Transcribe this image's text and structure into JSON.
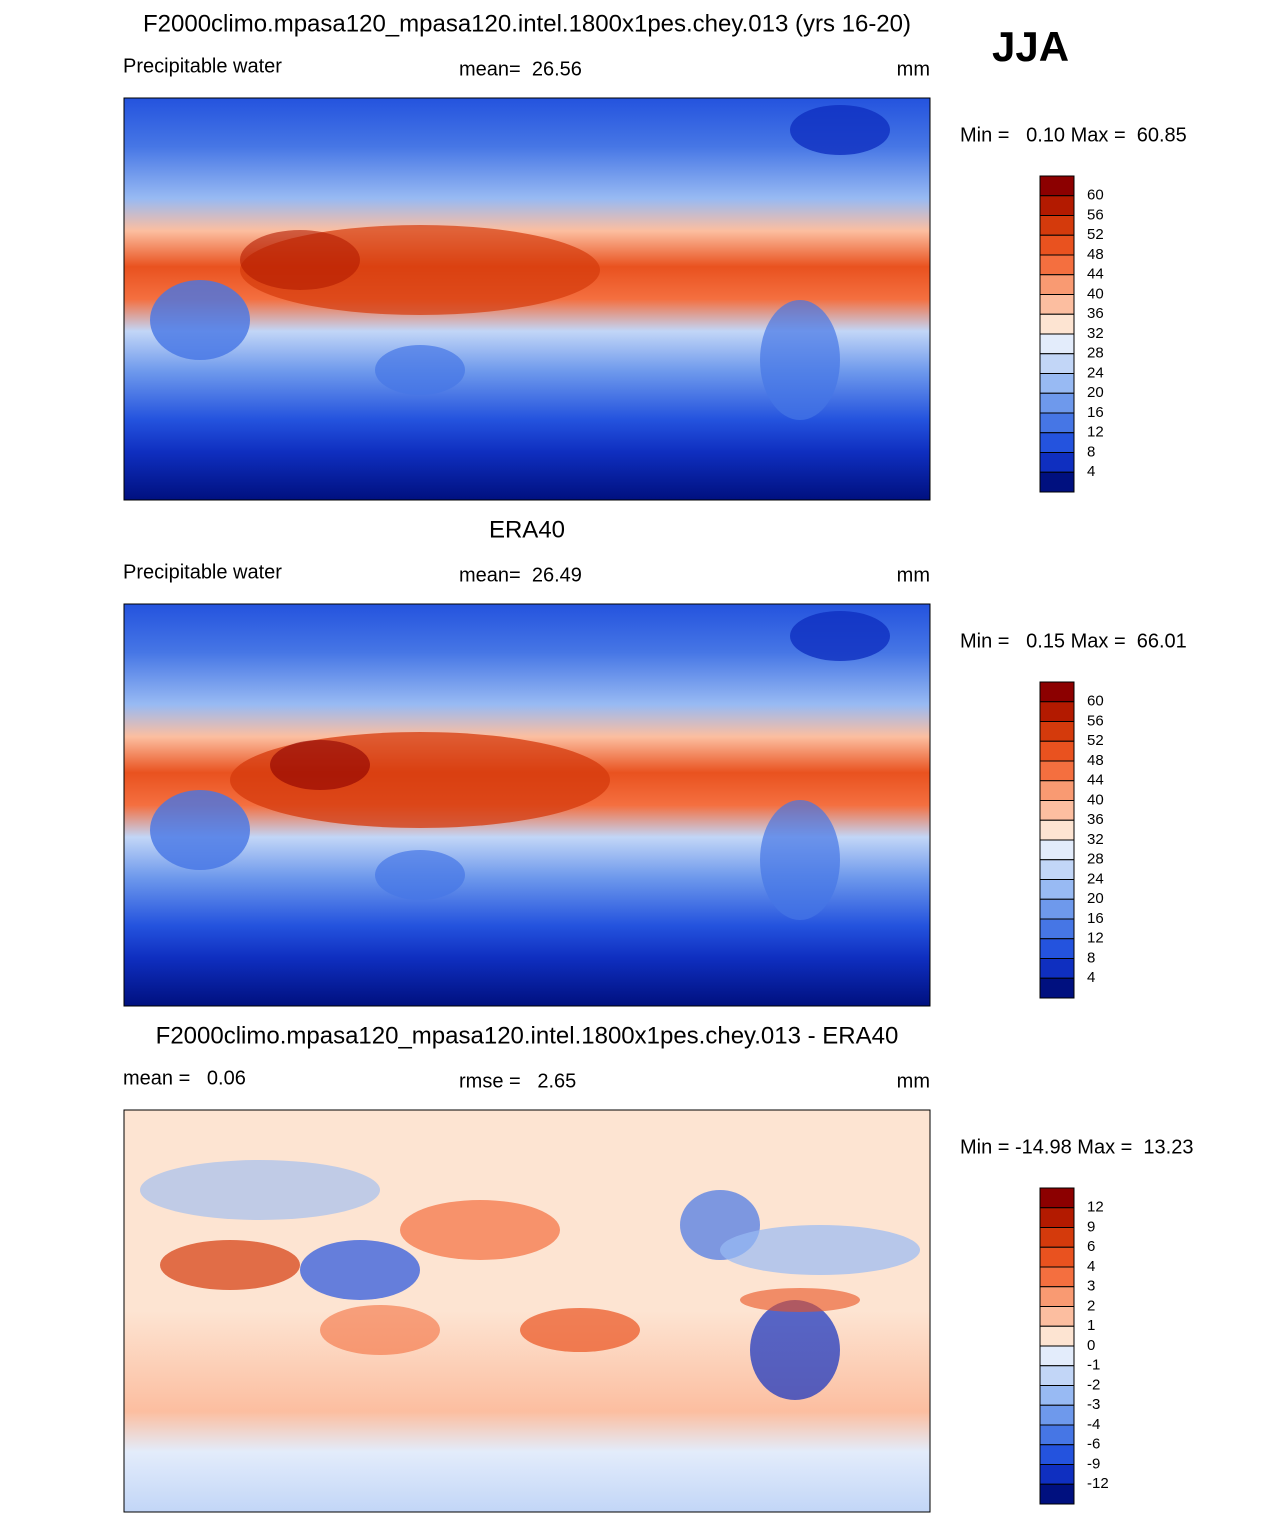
{
  "season": "JJA",
  "panels": [
    {
      "title": "F2000climo.mpasa120_mpasa120.intel.1800x1pes.chey.013 (yrs 16-20)",
      "left": "Precipitable water",
      "center": "mean=  26.56",
      "right": "mm",
      "minmax": "Min =   0.10 Max =  60.85",
      "colorbar": {
        "labels": [
          "60",
          "56",
          "52",
          "48",
          "44",
          "40",
          "36",
          "32",
          "28",
          "24",
          "20",
          "16",
          "12",
          "8",
          "4"
        ],
        "colors": [
          "#8c0000",
          "#b31a00",
          "#d43a0c",
          "#e9521f",
          "#f46f3f",
          "#f99a72",
          "#fcbea0",
          "#fde4d2",
          "#e3ecfb",
          "#c2d6f7",
          "#98baf3",
          "#6e99ec",
          "#4676e5",
          "#2453de",
          "#0f2fc0",
          "#00107f"
        ]
      }
    },
    {
      "title": "ERA40",
      "left": "Precipitable water",
      "center": "mean=  26.49",
      "right": "mm",
      "minmax": "Min =   0.15 Max =  66.01",
      "colorbar": {
        "labels": [
          "60",
          "56",
          "52",
          "48",
          "44",
          "40",
          "36",
          "32",
          "28",
          "24",
          "20",
          "16",
          "12",
          "8",
          "4"
        ],
        "colors": [
          "#8c0000",
          "#b31a00",
          "#d43a0c",
          "#e9521f",
          "#f46f3f",
          "#f99a72",
          "#fcbea0",
          "#fde4d2",
          "#e3ecfb",
          "#c2d6f7",
          "#98baf3",
          "#6e99ec",
          "#4676e5",
          "#2453de",
          "#0f2fc0",
          "#00107f"
        ]
      }
    },
    {
      "title": "F2000climo.mpasa120_mpasa120.intel.1800x1pes.chey.013 - ERA40",
      "left": "mean =   0.06",
      "center": "rmse =   2.65",
      "right": "mm",
      "minmax": "Min = -14.98 Max =  13.23",
      "colorbar": {
        "labels": [
          "12",
          "9",
          "6",
          "4",
          "3",
          "2",
          "1",
          "0",
          "-1",
          "-2",
          "-3",
          "-4",
          "-6",
          "-9",
          "-12"
        ],
        "colors": [
          "#8c0000",
          "#b31a00",
          "#d43a0c",
          "#e9521f",
          "#f46f3f",
          "#f99a72",
          "#fcbea0",
          "#fde4d2",
          "#e3ecfb",
          "#c2d6f7",
          "#98baf3",
          "#6e99ec",
          "#4676e5",
          "#2453de",
          "#0f2fc0",
          "#00107f"
        ]
      }
    }
  ]
}
